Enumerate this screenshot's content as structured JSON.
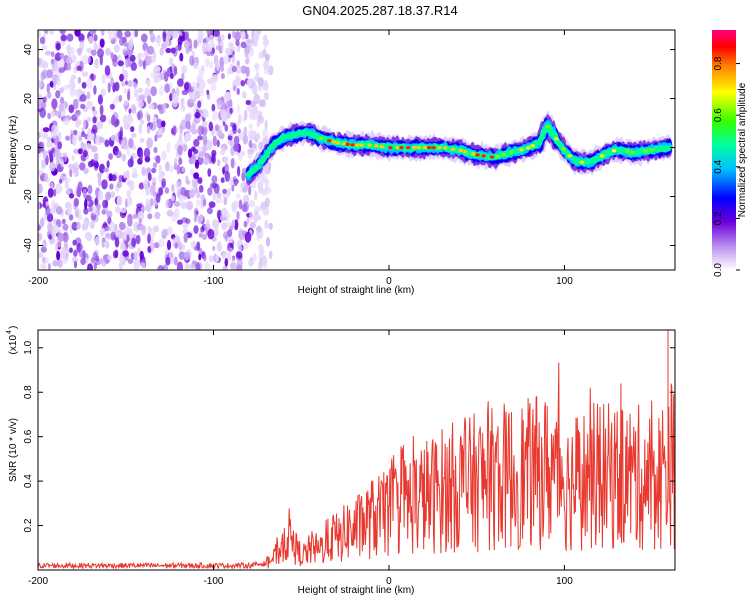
{
  "title": "GN04.2025.287.18.37.R14",
  "chart_data": [
    {
      "type": "heatmap",
      "xlabel": "Height of straight line (km)",
      "ylabel": "Frequency (Hz)",
      "xlim": [
        -200,
        163
      ],
      "ylim": [
        -50,
        48
      ],
      "xticks": [
        -200,
        -100,
        0,
        100
      ],
      "yticks": [
        -40,
        -20,
        0,
        20,
        40
      ],
      "grid": false,
      "noise_region_x": [
        -200,
        -73
      ],
      "ridge": {
        "x": [
          -80,
          -75,
          -70,
          -65,
          -60,
          -55,
          -50,
          -45,
          -40,
          -35,
          -30,
          -20,
          -10,
          0,
          10,
          20,
          30,
          40,
          50,
          60,
          70,
          80,
          86,
          90,
          95,
          100,
          105,
          110,
          115,
          120,
          125,
          130,
          140,
          150,
          160
        ],
        "y": [
          -11,
          -8,
          -3,
          2,
          4,
          5,
          6,
          6,
          4,
          3,
          2,
          1,
          1,
          0,
          0,
          0,
          0,
          -1,
          -3,
          -4,
          -2,
          0,
          2,
          9,
          4,
          -1,
          -5,
          -6,
          -6,
          -4,
          -2,
          -1,
          -2,
          -1,
          0
        ]
      },
      "colorbar": {
        "label": "Normalized spectral amplitude",
        "range": [
          0.0,
          0.93
        ],
        "ticks": [
          0.0,
          0.2,
          0.4,
          0.6,
          0.8
        ],
        "tick_labels": [
          "0.0",
          "0.2",
          "0.4",
          "0.6",
          "0.8"
        ]
      }
    },
    {
      "type": "line",
      "xlabel": "Height of straight line (km)",
      "ylabel": "SNR (10 * v/v)",
      "y_multiplier": "(x10",
      "y_multiplier_exp": "4",
      "xlim": [
        -200,
        163
      ],
      "ylim": [
        0,
        1.08
      ],
      "xticks": [
        -200,
        -100,
        0,
        100
      ],
      "yticks": [
        0.2,
        0.4,
        0.6,
        0.8,
        1.0
      ],
      "ytick_labels": [
        "0.2",
        "0.4",
        "0.6",
        "0.8",
        "1.0"
      ],
      "grid": false,
      "series": [
        {
          "color": "#e8382f",
          "x": [
            -200,
            -175,
            -150,
            -125,
            -100,
            -80,
            -70,
            -65,
            -60,
            -58,
            -55,
            -52,
            -48,
            -44,
            -40,
            -36,
            -32,
            -28,
            -24,
            -20,
            -16,
            -12,
            -8,
            -4,
            0,
            5,
            10,
            15,
            20,
            25,
            30,
            35,
            40,
            45,
            50,
            55,
            60,
            65,
            70,
            75,
            80,
            85,
            90,
            95,
            98,
            100,
            102,
            105,
            110,
            115,
            120,
            125,
            130,
            135,
            140,
            145,
            150,
            155,
            158,
            160,
            163
          ],
          "y": [
            0.02,
            0.02,
            0.02,
            0.02,
            0.02,
            0.02,
            0.03,
            0.06,
            0.12,
            0.17,
            0.13,
            0.08,
            0.07,
            0.1,
            0.09,
            0.12,
            0.15,
            0.14,
            0.18,
            0.18,
            0.2,
            0.22,
            0.24,
            0.24,
            0.26,
            0.28,
            0.3,
            0.31,
            0.33,
            0.34,
            0.36,
            0.37,
            0.38,
            0.38,
            0.4,
            0.4,
            0.41,
            0.42,
            0.42,
            0.43,
            0.43,
            0.44,
            0.44,
            0.45,
            0.48,
            0.4,
            0.38,
            0.4,
            0.41,
            0.42,
            0.42,
            0.42,
            0.42,
            0.42,
            0.42,
            0.41,
            0.4,
            0.42,
            0.47,
            0.5,
            0.45
          ]
        }
      ]
    }
  ]
}
